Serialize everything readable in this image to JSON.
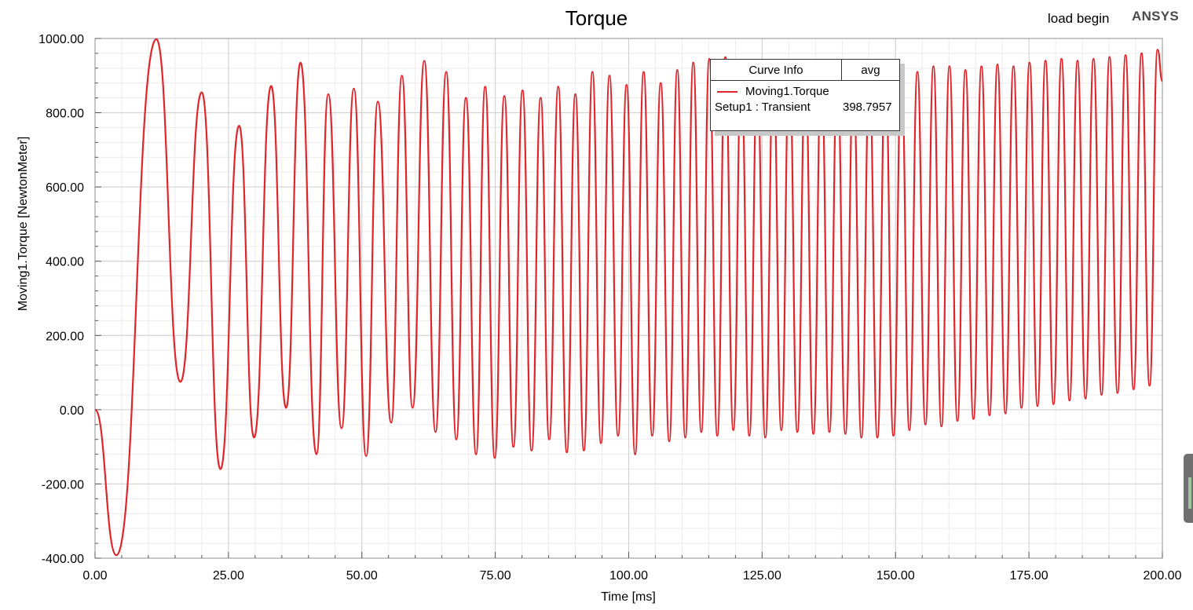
{
  "header": {
    "corner_label": "load begin",
    "brand": "ANSYS"
  },
  "legend": {
    "title": "Curve Info",
    "column": "avg",
    "series_name": "Moving1.Torque",
    "setup": "Setup1 : Transient",
    "avg_value": "398.7957"
  },
  "chart_data": {
    "type": "line",
    "title": "Torque",
    "xlabel": "Time [ms]",
    "ylabel": "Moving1.Torque [NewtonMeter]",
    "xlim": [
      0,
      200
    ],
    "ylim": [
      -400,
      1000
    ],
    "grid": true,
    "legend_position": "top-right",
    "x_ticks": [
      "0.00",
      "25.00",
      "50.00",
      "75.00",
      "100.00",
      "125.00",
      "150.00",
      "175.00",
      "200.00"
    ],
    "y_ticks": [
      "-400.00",
      "-200.00",
      "0.00",
      "200.00",
      "400.00",
      "600.00",
      "800.00",
      "1000.00"
    ],
    "series": [
      {
        "name": "Moving1.Torque",
        "color": "#e0262b",
        "x": [
          0,
          4,
          11.5,
          16,
          20,
          23.5,
          27,
          29.8,
          33,
          35.8,
          38.5,
          41.5,
          43.7,
          46.2,
          48.5,
          50.8,
          53,
          55.5,
          57.5,
          59.5,
          61.7,
          63.8,
          65.8,
          67.7,
          69.5,
          71.4,
          73.1,
          74.9,
          76.7,
          78.4,
          80.1,
          81.8,
          83.5,
          85.1,
          86.8,
          88.4,
          90,
          91.6,
          93.2,
          94.8,
          96.4,
          98,
          99.6,
          101.2,
          102.8,
          104.4,
          106,
          107.6,
          109.1,
          110.6,
          112.1,
          113.6,
          115.1,
          116.6,
          118.1,
          119.6,
          121.1,
          122.6,
          124.1,
          125.6,
          127.1,
          128.6,
          130.1,
          131.6,
          133.1,
          134.6,
          136.1,
          137.6,
          139.1,
          140.6,
          142.1,
          143.6,
          145.1,
          146.6,
          148.1,
          149.6,
          151.1,
          152.6,
          154.1,
          155.6,
          157.1,
          158.6,
          160.1,
          161.6,
          163.1,
          164.6,
          166.1,
          167.6,
          169.1,
          170.6,
          172.1,
          173.6,
          175.1,
          176.6,
          178.1,
          179.6,
          181.1,
          182.6,
          184.1,
          185.6,
          187.1,
          188.6,
          190.1,
          191.6,
          193.1,
          194.6,
          196.1,
          197.6,
          199.1,
          200
        ],
        "y": [
          0,
          -392,
          998,
          75,
          855,
          -160,
          765,
          -75,
          872,
          5,
          935,
          -120,
          850,
          -50,
          865,
          -125,
          830,
          -35,
          900,
          5,
          940,
          -60,
          910,
          -80,
          840,
          -120,
          870,
          -130,
          845,
          -100,
          860,
          -110,
          840,
          -80,
          870,
          -115,
          850,
          -110,
          910,
          -90,
          900,
          -70,
          875,
          -120,
          910,
          -70,
          880,
          -85,
          915,
          -75,
          935,
          -60,
          945,
          -70,
          950,
          -55,
          905,
          -70,
          885,
          -75,
          900,
          -55,
          920,
          -60,
          890,
          -65,
          905,
          -60,
          905,
          -65,
          880,
          -75,
          890,
          -75,
          900,
          -70,
          900,
          -55,
          910,
          -40,
          925,
          -45,
          925,
          -30,
          915,
          -25,
          925,
          -15,
          930,
          -10,
          925,
          5,
          935,
          10,
          940,
          15,
          945,
          25,
          940,
          30,
          945,
          40,
          950,
          45,
          955,
          55,
          960,
          65,
          970,
          885
        ]
      }
    ]
  }
}
